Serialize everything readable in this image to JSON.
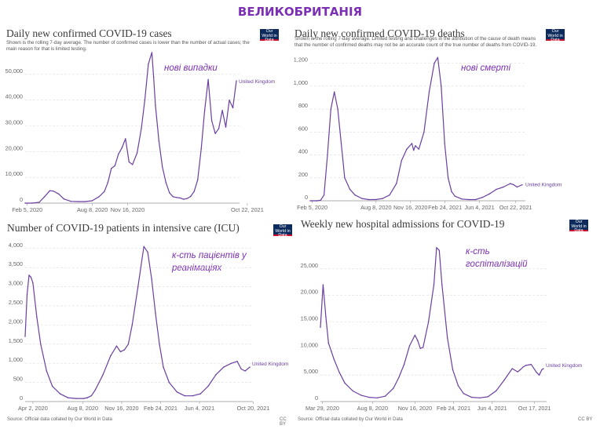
{
  "title": "ВЕЛИКОБРИТАНІЯ",
  "colors": {
    "line": "#6a3fa0",
    "grid": "#dddddd",
    "annotation": "#7b2fb5",
    "logo_bg": "#0d2a5c",
    "logo_stripe": "#c8102e"
  },
  "logo": {
    "label": "Our World in Data"
  },
  "footer": {
    "source": "Source: Official data collated by Our World in Data",
    "license": "CC BY"
  },
  "chart_data": [
    {
      "type": "line",
      "title": "Daily new confirmed COVID-19 cases",
      "subtitle": "Shown is the rolling 7-day average. The number of confirmed cases is lower than the number of actual cases; the main reason for that is limited testing.",
      "annotation": "нові випадки",
      "series_label": "United Kingdom",
      "x_min": 0,
      "x_max": 600,
      "x_ticks": [
        {
          "x": 6,
          "label": "Feb 5, 2020"
        },
        {
          "x": 191,
          "label": "Aug 8, 2020"
        },
        {
          "x": 291,
          "label": "Nov 16, 2020"
        },
        {
          "x": 631,
          "label": "Oct 22, 2021"
        }
      ],
      "ylim": [
        0,
        60000
      ],
      "y_ticks": [
        {
          "v": 0,
          "label": "0"
        },
        {
          "v": 10000,
          "label": "10,000"
        },
        {
          "v": 20000,
          "label": "20,000"
        },
        {
          "v": 30000,
          "label": "30,000"
        },
        {
          "v": 40000,
          "label": "40,000"
        },
        {
          "v": 50000,
          "label": "50,000"
        }
      ],
      "x": [
        0,
        20,
        40,
        55,
        70,
        80,
        95,
        110,
        130,
        150,
        170,
        190,
        210,
        225,
        235,
        245,
        255,
        265,
        275,
        285,
        295,
        305,
        318,
        330,
        340,
        350,
        360,
        365,
        370,
        380,
        390,
        400,
        410,
        420,
        430,
        440,
        450,
        460,
        470,
        480,
        490,
        500,
        510,
        520,
        530,
        540,
        550,
        560,
        570,
        580,
        590,
        600
      ],
      "y": [
        0,
        0,
        300,
        2500,
        4800,
        4700,
        3600,
        1600,
        700,
        600,
        600,
        900,
        2500,
        4500,
        8000,
        13500,
        14500,
        19000,
        21500,
        25000,
        16000,
        15000,
        19500,
        29000,
        40000,
        54000,
        58500,
        49000,
        38000,
        24000,
        14000,
        8000,
        4000,
        2500,
        2200,
        2000,
        1500,
        1800,
        2600,
        4500,
        9000,
        21000,
        36000,
        48000,
        32000,
        27000,
        29000,
        36000,
        29500,
        40000,
        37000,
        47500
      ]
    },
    {
      "type": "line",
      "title": "Daily new confirmed COVID-19 deaths",
      "subtitle": "Shown is the rolling 7-day average. Limited testing and challenges in the attribution of the cause of death means that the number of confirmed deaths may not be an accurate count of the true number of deaths from COVID-19.",
      "annotation": "нові смерті",
      "series_label": "United Kingdom",
      "x_min": 0,
      "x_max": 615,
      "x_ticks": [
        {
          "x": 6,
          "label": "Feb 5, 2020"
        },
        {
          "x": 191,
          "label": "Aug 8, 2020"
        },
        {
          "x": 291,
          "label": "Nov 16, 2020"
        },
        {
          "x": 391,
          "label": "Feb 24, 2021"
        },
        {
          "x": 491,
          "label": "Jun 4, 2021"
        },
        {
          "x": 596,
          "label": "Oct 22, 2021"
        }
      ],
      "ylim": [
        0,
        1300
      ],
      "y_ticks": [
        {
          "v": 0,
          "label": "0"
        },
        {
          "v": 200,
          "label": "200"
        },
        {
          "v": 400,
          "label": "400"
        },
        {
          "v": 600,
          "label": "600"
        },
        {
          "v": 800,
          "label": "800"
        },
        {
          "v": 1000,
          "label": "1,000"
        },
        {
          "v": 1200,
          "label": "1,200"
        }
      ],
      "x": [
        0,
        20,
        30,
        40,
        50,
        60,
        70,
        80,
        90,
        100,
        115,
        130,
        150,
        170,
        190,
        210,
        230,
        250,
        265,
        280,
        295,
        300,
        305,
        315,
        330,
        345,
        360,
        370,
        380,
        390,
        400,
        410,
        420,
        440,
        460,
        480,
        500,
        520,
        540,
        560,
        580,
        590,
        600,
        615
      ],
      "y": [
        0,
        0,
        5,
        50,
        400,
        800,
        950,
        800,
        500,
        200,
        100,
        50,
        20,
        10,
        10,
        20,
        50,
        150,
        350,
        450,
        500,
        440,
        480,
        450,
        600,
        950,
        1200,
        1250,
        1000,
        500,
        200,
        80,
        40,
        15,
        10,
        10,
        30,
        60,
        100,
        120,
        150,
        140,
        120,
        140
      ]
    },
    {
      "type": "line",
      "title": "Number of COVID-19 patients in intensive care (ICU)",
      "subtitle": "",
      "annotation": "к-сть пацієнтів у реанімаціях",
      "series_label": "United Kingdom",
      "x_min": 0,
      "x_max": 577,
      "x_ticks": [
        {
          "x": 20,
          "label": "Apr 2, 2020"
        },
        {
          "x": 148,
          "label": "Aug 8, 2020"
        },
        {
          "x": 248,
          "label": "Nov 16, 2020"
        },
        {
          "x": 348,
          "label": "Feb 24, 2021"
        },
        {
          "x": 448,
          "label": "Jun 4, 2021"
        },
        {
          "x": 586,
          "label": "Oct 20, 2021"
        }
      ],
      "ylim": [
        0,
        4200
      ],
      "y_ticks": [
        {
          "v": 0,
          "label": "0"
        },
        {
          "v": 500,
          "label": "500"
        },
        {
          "v": 1000,
          "label": "1,000"
        },
        {
          "v": 1500,
          "label": "1,500"
        },
        {
          "v": 2000,
          "label": "2,000"
        },
        {
          "v": 2500,
          "label": "2,500"
        },
        {
          "v": 3000,
          "label": "3,000"
        },
        {
          "v": 3500,
          "label": "3,500"
        },
        {
          "v": 4000,
          "label": "4,000"
        }
      ],
      "x": [
        0,
        5,
        10,
        15,
        20,
        30,
        40,
        55,
        70,
        90,
        110,
        130,
        150,
        160,
        170,
        180,
        200,
        220,
        235,
        245,
        255,
        265,
        275,
        290,
        305,
        315,
        325,
        335,
        345,
        355,
        370,
        390,
        410,
        430,
        450,
        470,
        490,
        510,
        530,
        545,
        555,
        565,
        577
      ],
      "y": [
        1700,
        2800,
        3300,
        3250,
        3100,
        2200,
        1500,
        800,
        400,
        200,
        100,
        80,
        80,
        100,
        150,
        300,
        700,
        1200,
        1450,
        1300,
        1350,
        1500,
        2000,
        3000,
        4050,
        3900,
        3200,
        2300,
        1500,
        900,
        500,
        250,
        150,
        150,
        200,
        400,
        700,
        900,
        1000,
        1050,
        850,
        800,
        900
      ]
    },
    {
      "type": "line",
      "title": "Weekly new hospital admissions for COVID-19",
      "subtitle": "",
      "annotation": "к-сть госпіталізацій",
      "series_label": "United Kingdom",
      "x_min": 0,
      "x_max": 578,
      "x_ticks": [
        {
          "x": 5,
          "label": "Mar 29, 2020"
        },
        {
          "x": 135,
          "label": "Aug 8, 2020"
        },
        {
          "x": 245,
          "label": "Nov 16, 2020"
        },
        {
          "x": 345,
          "label": "Feb 24, 2021"
        },
        {
          "x": 445,
          "label": "Jun 4, 2021"
        },
        {
          "x": 555,
          "label": "Oct 17, 2021"
        }
      ],
      "ylim": [
        0,
        30000
      ],
      "y_ticks": [
        {
          "v": 0,
          "label": "0"
        },
        {
          "v": 5000,
          "label": "5,000"
        },
        {
          "v": 10000,
          "label": "10,000"
        },
        {
          "v": 15000,
          "label": "15,000"
        },
        {
          "v": 20000,
          "label": "20,000"
        },
        {
          "v": 25000,
          "label": "25,000"
        }
      ],
      "x": [
        0,
        7,
        14,
        21,
        28,
        35,
        49,
        63,
        84,
        105,
        126,
        147,
        168,
        189,
        203,
        217,
        231,
        245,
        252,
        259,
        266,
        280,
        294,
        301,
        308,
        315,
        329,
        343,
        357,
        371,
        392,
        413,
        434,
        455,
        476,
        497,
        511,
        518,
        525,
        532,
        546,
        560,
        567,
        574,
        578
      ],
      "y": [
        14000,
        22000,
        16000,
        11000,
        9500,
        8000,
        5500,
        3500,
        2000,
        1200,
        800,
        700,
        1000,
        2500,
        4500,
        7000,
        10500,
        12500,
        11500,
        10000,
        10200,
        15000,
        22000,
        29000,
        28500,
        22000,
        12000,
        6000,
        3000,
        1500,
        800,
        700,
        900,
        2000,
        4000,
        6200,
        5600,
        6000,
        6500,
        6800,
        7000,
        5500,
        5000,
        6000,
        6200
      ]
    }
  ]
}
